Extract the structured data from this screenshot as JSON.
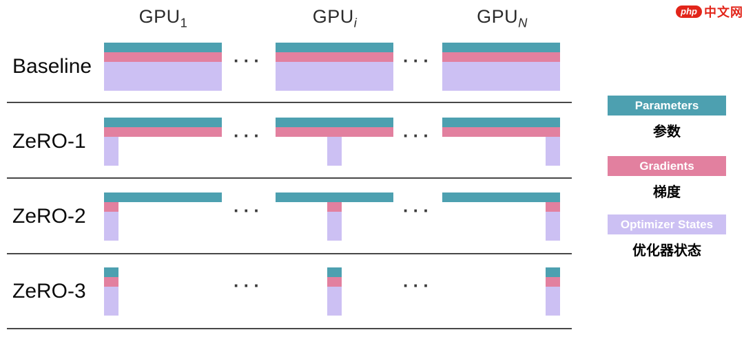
{
  "watermark": {
    "badge": "php",
    "brand": "中文网",
    "color": "#e2251a"
  },
  "columns": [
    {
      "base": "GPU",
      "sub": "1"
    },
    {
      "base": "GPU",
      "sub": "i"
    },
    {
      "base": "GPU",
      "sub": "N"
    }
  ],
  "rows": [
    {
      "label": "Baseline",
      "layers": {
        "parameters": "full",
        "gradients": "full",
        "optimizer": "full"
      }
    },
    {
      "label": "ZeRO-1",
      "layers": {
        "parameters": "full",
        "gradients": "full",
        "optimizer": "shard"
      }
    },
    {
      "label": "ZeRO-2",
      "layers": {
        "parameters": "full",
        "gradients": "shard",
        "optimizer": "shard"
      }
    },
    {
      "label": "ZeRO-3",
      "layers": {
        "parameters": "shard",
        "gradients": "shard",
        "optimizer": "shard"
      }
    }
  ],
  "legend": [
    {
      "label": "Parameters",
      "label_zh": "参数",
      "color": "#4da0b0"
    },
    {
      "label": "Gradients",
      "label_zh": "梯度",
      "color": "#e2809f"
    },
    {
      "label": "Optimizer States",
      "label_zh": "优化器状态",
      "color": "#ccc0f3"
    }
  ],
  "colors": {
    "parameters": "#4da0b0",
    "gradients": "#e2809f",
    "optimizer": "#ccc0f3",
    "separator": "#474747",
    "text": "#0c0c0c"
  },
  "ellipsis": "···"
}
